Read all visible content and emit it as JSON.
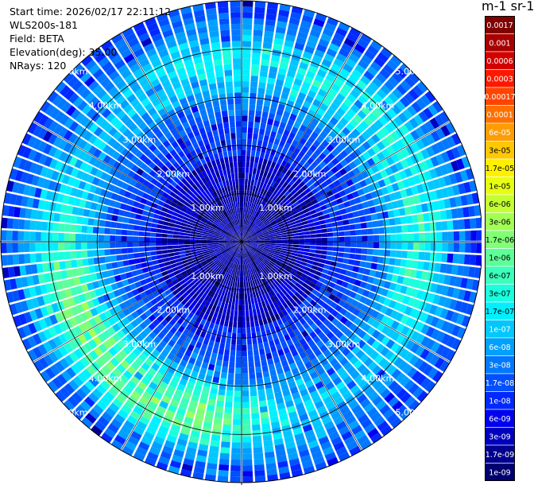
{
  "info": {
    "start_time": "Start time: 2026/02/17 22:11:12",
    "instrument": "WLS200s-181",
    "field": "Field: BETA",
    "elevation": "Elevation(deg): 35.00",
    "nrays": "NRays: 120"
  },
  "colorbar": {
    "unit": "m-1 sr-1",
    "labels": [
      "0.0017",
      "0.001",
      "0.0006",
      "0.0003",
      "0.00017",
      "0.0001",
      "6e-05",
      "3e-05",
      "1.7e-05",
      "1e-05",
      "6e-06",
      "3e-06",
      "1.7e-06",
      "1e-06",
      "6e-07",
      "3e-07",
      "1.7e-07",
      "1e-07",
      "6e-08",
      "3e-08",
      "1.7e-08",
      "1e-08",
      "6e-09",
      "3e-09",
      "1.7e-09",
      "1e-09"
    ],
    "colors": [
      "#800000",
      "#a80000",
      "#d40000",
      "#ff1800",
      "#ff4400",
      "#ff7000",
      "#ff9c00",
      "#ffc800",
      "#fff000",
      "#e6ff10",
      "#c4ff32",
      "#a2ff55",
      "#80ff77",
      "#5eff99",
      "#3cffbb",
      "#1affdd",
      "#00f0ff",
      "#00c8ff",
      "#00a0ff",
      "#0078ff",
      "#0050ff",
      "#0028ff",
      "#0000f0",
      "#0000c0",
      "#000090",
      "#000070"
    ]
  },
  "chart_data": {
    "type": "heatmap",
    "projection": "polar-ppi",
    "field": "BETA",
    "elevation_deg": 35.0,
    "n_rays": 120,
    "range_rings_km": [
      1,
      2,
      3,
      4,
      5
    ],
    "ring_labels": [
      "1.00km",
      "2.00km",
      "3.00km",
      "4.00km",
      "5.00km"
    ],
    "max_range_km": 5.0,
    "ring_label_angles_deg": [
      45,
      135,
      225,
      315
    ],
    "value_range": [
      1e-09,
      0.0017
    ],
    "scale": "log",
    "approx_distribution": "background ~1e-08 to 6e-08; partial annulus ~1e-07 to 1.7e-06 at about 2.2-4.8 km range, brightest to the west and south-southwest; lowest ~1e-09 near the center"
  }
}
